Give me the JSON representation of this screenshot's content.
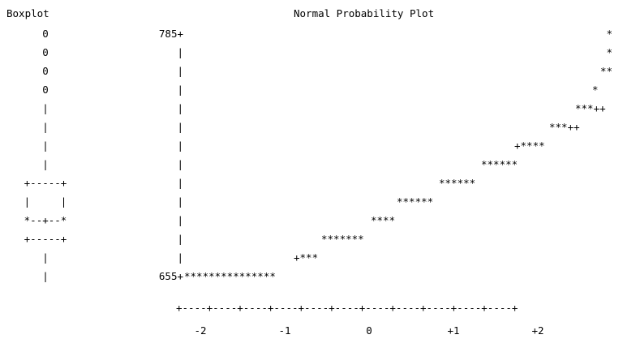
{
  "boxplot_title": "Boxplot",
  "plot_title": "Normal Probability Plot",
  "boxplot_lines": [
    "0",
    "0",
    "0",
    "0",
    "|",
    "|",
    "|",
    "|",
    "+-----+",
    "|     |",
    "*--+--*",
    "+-----+",
    "|",
    "|"
  ],
  "y_axis_lines": [
    "785+",
    "|",
    "|",
    "|",
    "|",
    "|",
    "|",
    "|",
    "|",
    "|",
    "|",
    "|",
    "|",
    "655+"
  ],
  "plot_rows": [
    "*",
    "*",
    "**",
    "*",
    "***++",
    "***++",
    "+****",
    "******",
    "******",
    "******",
    "****",
    "*******",
    "+***",
    "***************"
  ],
  "x_axis_rule": "+----+----+----+----+----+----+----+----+----+----+----+",
  "x_ticks": [
    "-2",
    "-1",
    "0",
    "+1",
    "+2"
  ]
}
